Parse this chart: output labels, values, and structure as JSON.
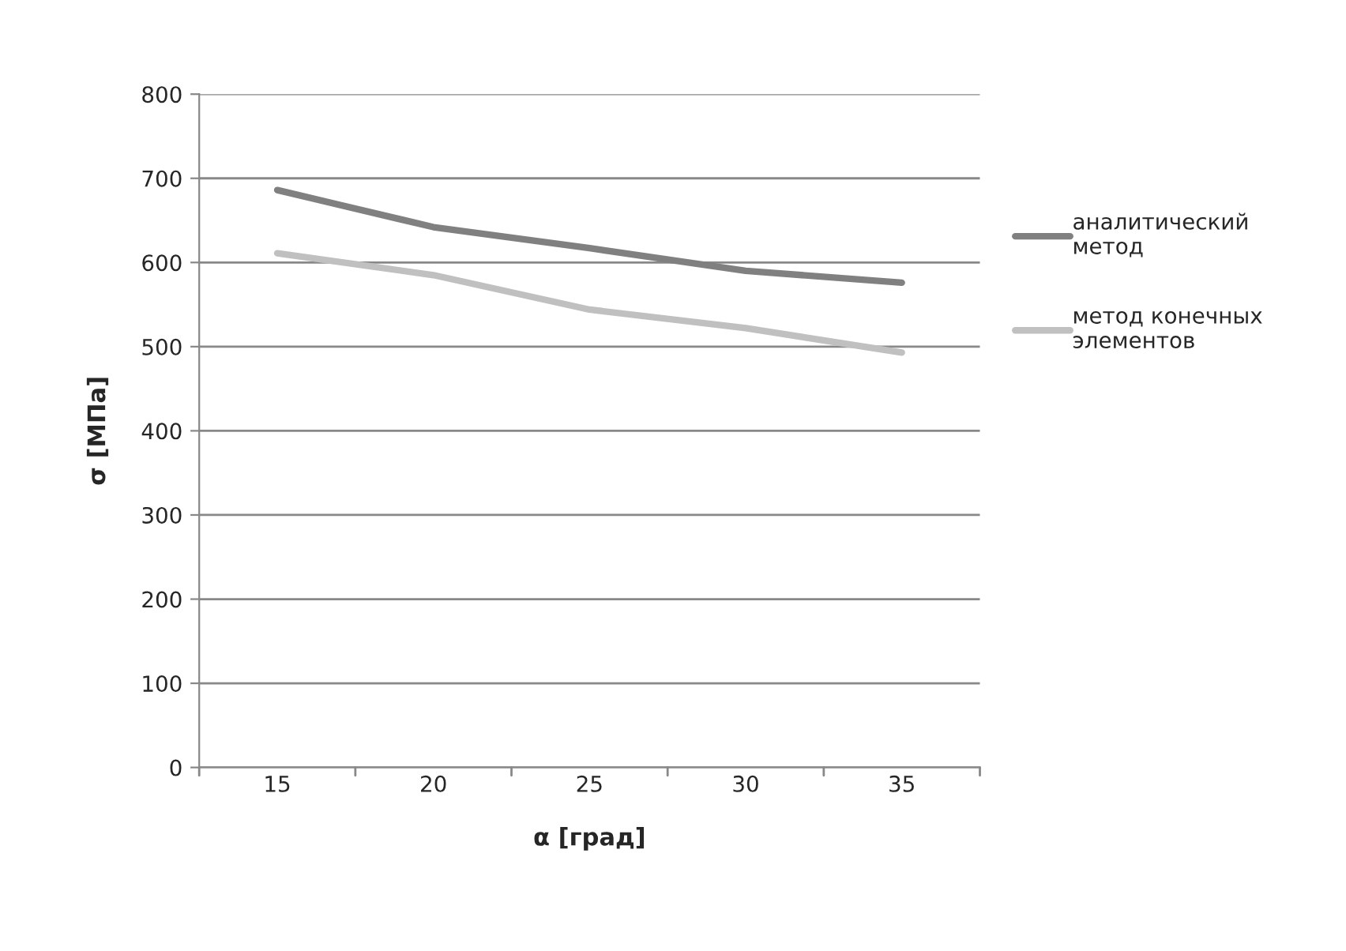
{
  "chart_data": {
    "type": "line",
    "xlabel": "α [град]",
    "ylabel": "σ [МПа]",
    "categories": [
      "15",
      "20",
      "25",
      "30",
      "35"
    ],
    "series": [
      {
        "name": "аналитический метод",
        "color": "#808080",
        "values": [
          686,
          642,
          617,
          590,
          576
        ]
      },
      {
        "name": "метод конечных элементов",
        "color": "#c0c0c0",
        "values": [
          611,
          585,
          544,
          522,
          493
        ]
      }
    ],
    "ylim": [
      0,
      800
    ],
    "yticks": [
      0,
      100,
      200,
      300,
      400,
      500,
      600,
      700,
      800
    ],
    "grid": "y",
    "legend": "right",
    "line_style": "solid"
  }
}
